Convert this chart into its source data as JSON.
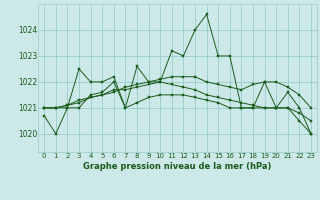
{
  "title": "Graphe pression niveau de la mer (hPa)",
  "bg_color": "#cce8e8",
  "grid_color": "#99cccc",
  "line_color": "#1a5c1a",
  "xlim": [
    -0.5,
    23.5
  ],
  "ylim": [
    1019.3,
    1025.0
  ],
  "yticks": [
    1020,
    1021,
    1022,
    1023,
    1024
  ],
  "xticks": [
    0,
    1,
    2,
    3,
    4,
    5,
    6,
    7,
    8,
    9,
    10,
    11,
    12,
    13,
    14,
    15,
    16,
    17,
    18,
    19,
    20,
    21,
    22,
    23
  ],
  "series": [
    [
      1020.7,
      1020.0,
      1021.0,
      1022.5,
      1022.0,
      1022.0,
      1022.2,
      1021.0,
      1022.6,
      1022.0,
      1022.0,
      1023.2,
      1023.0,
      1024.0,
      1024.6,
      1023.0,
      1023.0,
      1021.0,
      1021.0,
      1022.0,
      1021.0,
      1021.6,
      1021.0,
      1020.0
    ],
    [
      1021.0,
      1021.0,
      1021.0,
      1021.0,
      1021.5,
      1021.6,
      1022.0,
      1021.0,
      1021.2,
      1021.4,
      1021.5,
      1021.5,
      1021.5,
      1021.4,
      1021.3,
      1021.2,
      1021.0,
      1021.0,
      1021.0,
      1021.0,
      1021.0,
      1021.0,
      1020.8,
      1020.5
    ],
    [
      1021.0,
      1021.0,
      1021.1,
      1021.3,
      1021.4,
      1021.5,
      1021.7,
      1021.7,
      1021.8,
      1021.9,
      1022.0,
      1021.9,
      1021.8,
      1021.7,
      1021.5,
      1021.4,
      1021.3,
      1021.2,
      1021.1,
      1021.0,
      1021.0,
      1021.0,
      1020.5,
      1020.0
    ],
    [
      1021.0,
      1021.0,
      1021.1,
      1021.2,
      1021.4,
      1021.5,
      1021.6,
      1021.8,
      1021.9,
      1022.0,
      1022.1,
      1022.2,
      1022.2,
      1022.2,
      1022.0,
      1021.9,
      1021.8,
      1021.7,
      1021.9,
      1022.0,
      1022.0,
      1021.8,
      1021.5,
      1021.0
    ]
  ]
}
